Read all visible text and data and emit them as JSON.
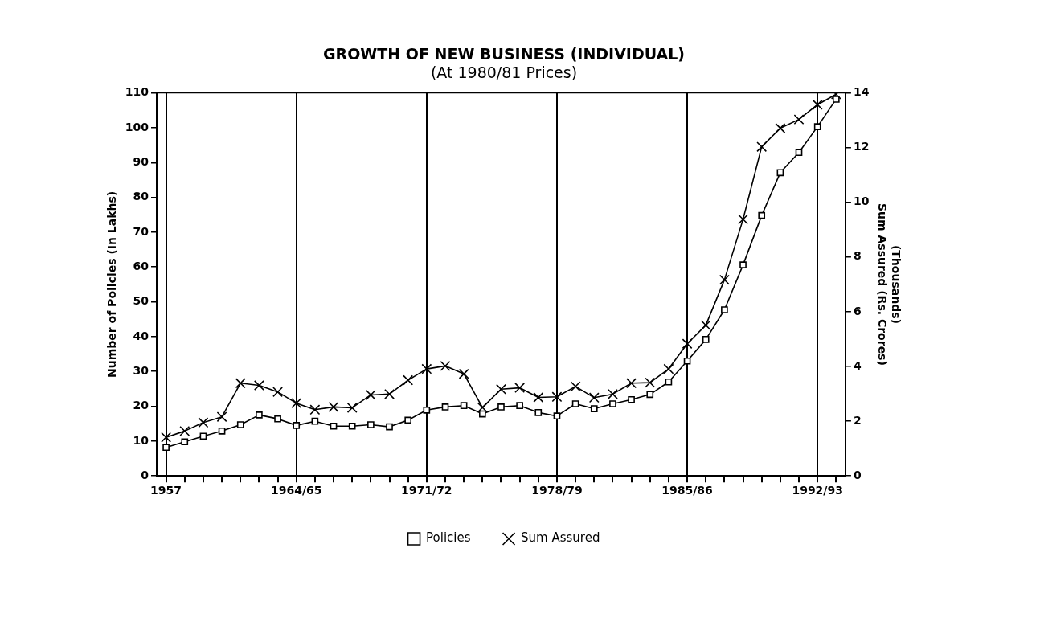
{
  "chart_data": {
    "type": "line",
    "title": "GROWTH OF NEW BUSINESS (INDIVIDUAL)",
    "subtitle": "(At 1980/81 Prices)",
    "ylabel": "Number of Policies (In Lakhs)",
    "y2label": "(Thousands)\nSum Assured (Rs. Crores)",
    "categories": [
      "1957",
      null,
      null,
      null,
      null,
      null,
      null,
      "1964/65",
      null,
      null,
      null,
      null,
      null,
      null,
      "1971/72",
      null,
      null,
      null,
      null,
      null,
      null,
      "1978/79",
      null,
      null,
      null,
      null,
      null,
      null,
      "1985/86",
      null,
      null,
      null,
      null,
      null,
      null,
      "1992/93",
      null
    ],
    "series": [
      {
        "name": "Policies",
        "color": "#000000",
        "marker": "square",
        "values": [
          8.2,
          9.8,
          11.4,
          12.9,
          14.7,
          17.5,
          16.4,
          14.5,
          15.7,
          14.3,
          14.3,
          14.7,
          14.1,
          16.0,
          18.9,
          19.8,
          20.2,
          17.8,
          19.8,
          20.2,
          18.2,
          17.2,
          20.7,
          19.3,
          20.7,
          21.9,
          23.4,
          27.0,
          33.0,
          39.2,
          47.7,
          60.6,
          74.8,
          87.1,
          92.9,
          100.3,
          108.2
        ]
      },
      {
        "name": "Sum Assured",
        "color": "#000000",
        "marker": "cross",
        "axis": "y2",
        "values": [
          1.41,
          1.64,
          1.95,
          2.16,
          3.39,
          3.31,
          3.07,
          2.66,
          2.42,
          2.52,
          2.49,
          2.96,
          2.99,
          3.5,
          3.91,
          4.02,
          3.73,
          2.5,
          3.17,
          3.22,
          2.87,
          2.89,
          3.27,
          2.86,
          2.99,
          3.39,
          3.41,
          3.91,
          4.83,
          5.51,
          7.17,
          9.38,
          12.03,
          12.71,
          13.03,
          13.57,
          13.95
        ]
      }
    ],
    "ylim": [
      0,
      110
    ],
    "yticks": [
      0,
      10,
      20,
      30,
      40,
      50,
      60,
      70,
      80,
      90,
      100,
      110
    ],
    "y2lim": [
      0,
      14
    ],
    "y2ticks": [
      0,
      2,
      4,
      6,
      8,
      10,
      12,
      14
    ],
    "grid": "x",
    "legend": "bottom",
    "line_style": "solid"
  }
}
